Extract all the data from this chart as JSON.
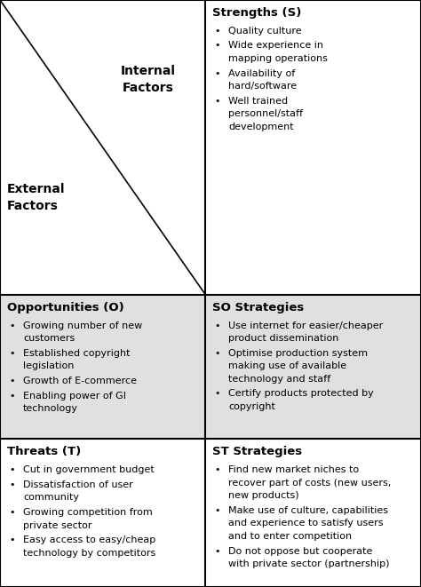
{
  "bg_color": "#ffffff",
  "border_color": "#000000",
  "cell_bg_white": "#ffffff",
  "cell_bg_gray": "#e0e0e0",
  "col_split": 0.488,
  "row_split1": 0.502,
  "row_split2": 0.748,
  "internal_line1": "Internal",
  "internal_line2": "Factors",
  "external_line1": "External",
  "external_line2": "Factors",
  "strengths_title": "Strengths (S)",
  "strengths_items": [
    "Quality culture",
    "Wide experience in\nmapping operations",
    "Availability of\nhard/software",
    "Well trained\npersonnel/staff\ndevelopment"
  ],
  "opportunities_title": "Opportunities (O)",
  "opportunities_items": [
    "Growing number of new\ncustomers",
    "Established copyright\nlegislation",
    "Growth of E-commerce",
    "Enabling power of GI\ntechnology"
  ],
  "so_title": "SO Strategies",
  "so_items": [
    "Use internet for easier/cheaper\nproduct dissemination",
    "Optimise production system\nmaking use of available\ntechnology and staff",
    "Certify products protected by\ncopyright"
  ],
  "threats_title": "Threats (T)",
  "threats_items": [
    "Cut in government budget",
    "Dissatisfaction of user\ncommunity",
    "Growing competition from\nprivate sector",
    "Easy access to easy/cheap\ntechnology by competitors"
  ],
  "st_title": "ST Strategies",
  "st_items": [
    "Find new market niches to\nrecover part of costs (new users,\nnew products)",
    "Make use of culture, capabilities\nand experience to satisfy users\nand to enter competition",
    "Do not oppose but cooperate\nwith private sector (partnership)"
  ],
  "font_size_title": 9.5,
  "font_size_body": 8.0,
  "font_size_label": 10.0
}
